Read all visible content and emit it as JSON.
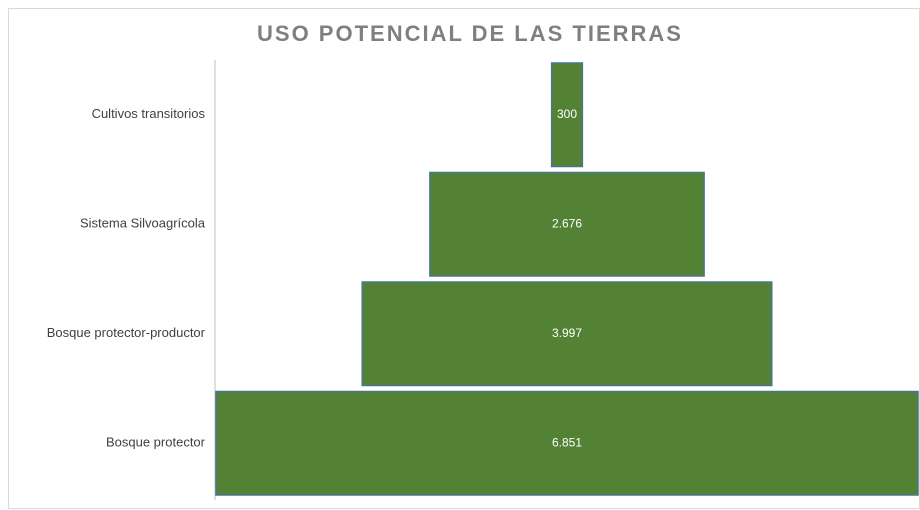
{
  "chart_data": {
    "type": "funnel",
    "title": "USO POTENCIAL DE LAS TIERRAS",
    "categories": [
      "Cultivos transitorios",
      "Sistema Silvoagrícola",
      "Bosque protector-productor",
      "Bosque protector"
    ],
    "values": [
      300,
      2676,
      3997,
      6851
    ],
    "value_labels": [
      "300",
      "2.676",
      "3.997",
      "6.851"
    ],
    "color": "#548235"
  }
}
